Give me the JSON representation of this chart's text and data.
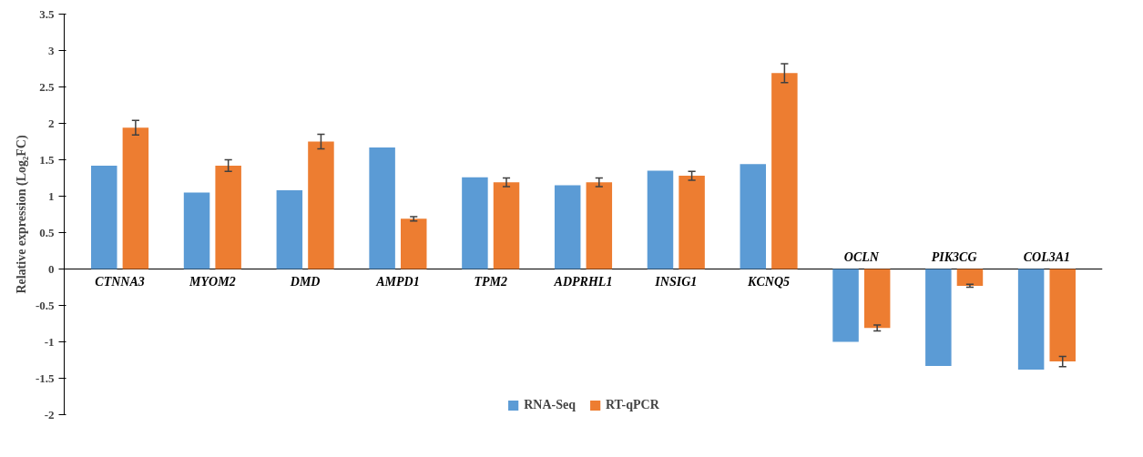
{
  "chart_data": {
    "type": "bar",
    "ylabel": "Relative expression (Log₂FC)",
    "categories": [
      "CTNNA3",
      "MYOM2",
      "DMD",
      "AMPD1",
      "TPM2",
      "ADPRHL1",
      "INSIG1",
      "KCNQ5",
      "OCLN",
      "PIK3CG",
      "COL3A1"
    ],
    "series": [
      {
        "name": "RNA-Seq",
        "color": "#5b9bd5",
        "values": [
          1.42,
          1.05,
          1.08,
          1.67,
          1.26,
          1.15,
          1.35,
          1.44,
          -1.0,
          -1.33,
          -1.38
        ]
      },
      {
        "name": "RT-qPCR",
        "color": "#ed7d31",
        "values": [
          1.94,
          1.42,
          1.75,
          0.69,
          1.19,
          1.19,
          1.28,
          2.69,
          -0.81,
          -0.23,
          -1.27
        ],
        "errors": [
          0.1,
          0.08,
          0.1,
          0.03,
          0.06,
          0.06,
          0.06,
          0.13,
          0.04,
          0.02,
          0.07
        ]
      }
    ],
    "ylim": [
      -2,
      3.5
    ],
    "yticks": [
      -2,
      -1.5,
      -1,
      -0.5,
      0,
      0.5,
      1,
      1.5,
      2,
      2.5,
      3,
      3.5
    ],
    "grid": false,
    "legend": "bottom"
  }
}
